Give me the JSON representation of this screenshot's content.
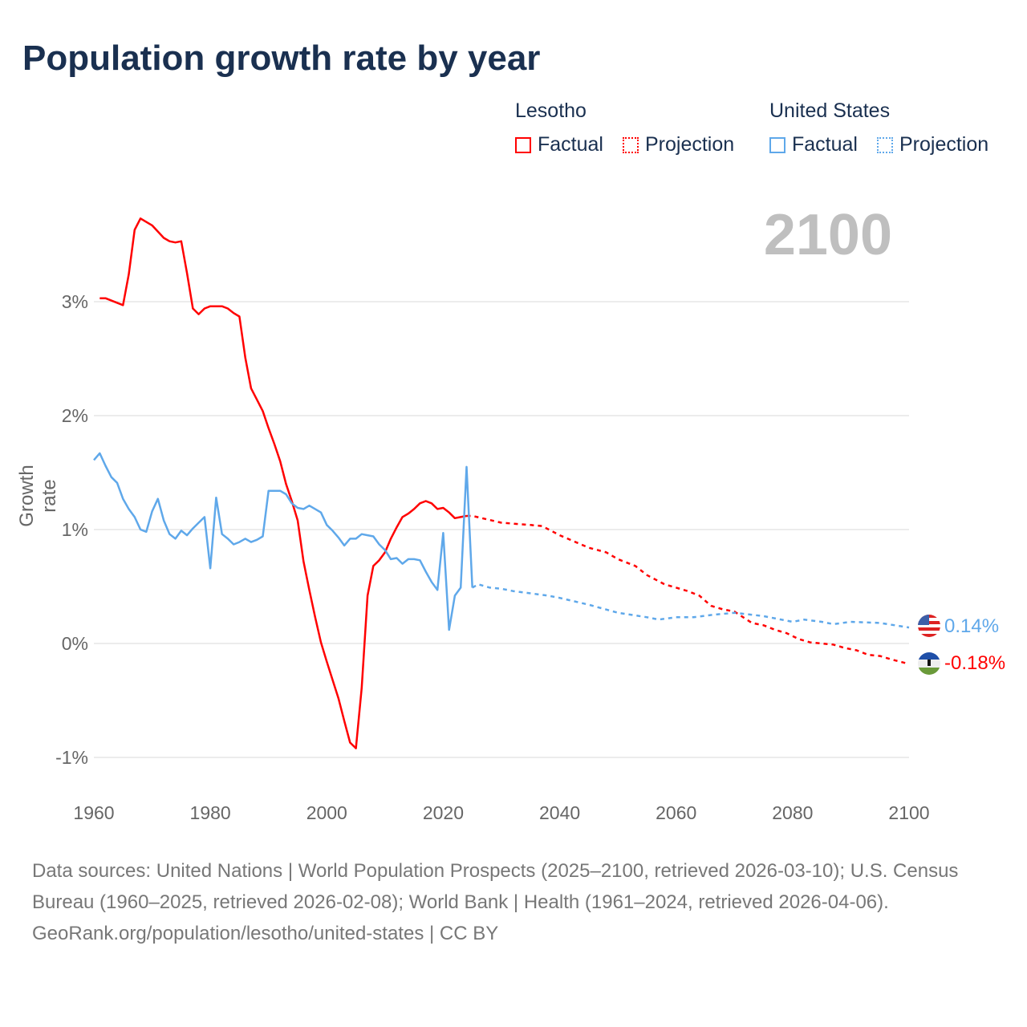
{
  "chart_data": {
    "type": "line",
    "title": "Population growth rate by year",
    "ylabel": "Growth rate",
    "xlabel": "",
    "xlim": [
      1960,
      2100
    ],
    "ylim": [
      -1.1,
      3.9
    ],
    "x_ticks": [
      "1960",
      "1980",
      "2000",
      "2020",
      "2040",
      "2060",
      "2080",
      "2100"
    ],
    "y_ticks": [
      {
        "value": 3,
        "label": "3%"
      },
      {
        "value": 2,
        "label": "2%"
      },
      {
        "value": 1,
        "label": "1%"
      },
      {
        "value": 0,
        "label": "0%"
      },
      {
        "value": -1,
        "label": "-1%"
      }
    ],
    "grid": true,
    "current_year": "2100",
    "legend": {
      "placement": "top-right",
      "groups": [
        {
          "name": "Lesotho",
          "factual": "Factual",
          "projection": "Projection"
        },
        {
          "name": "United States",
          "factual": "Factual",
          "projection": "Projection"
        }
      ]
    },
    "series": [
      {
        "name": "Lesotho",
        "kind": "factual",
        "color": "#ff0000",
        "x": [
          1961,
          1962,
          1965,
          1966,
          1967,
          1968,
          1970,
          1972,
          1973,
          1974,
          1975,
          1976,
          1977,
          1978,
          1979,
          1980,
          1981,
          1982,
          1983,
          1984,
          1985,
          1986,
          1987,
          1988,
          1989,
          1990,
          1991,
          1992,
          1993,
          1994,
          1995,
          1996,
          1997,
          1998,
          1999,
          2000,
          2001,
          2002,
          2003,
          2004,
          2005,
          2006,
          2007,
          2008,
          2009,
          2010,
          2011,
          2012,
          2013,
          2014,
          2015,
          2016,
          2017,
          2018,
          2019,
          2020,
          2021,
          2022,
          2023,
          2024
        ],
        "y": [
          3.03,
          3.03,
          2.97,
          3.24,
          3.63,
          3.73,
          3.67,
          3.56,
          3.53,
          3.52,
          3.53,
          3.25,
          2.94,
          2.89,
          2.94,
          2.96,
          2.96,
          2.96,
          2.94,
          2.9,
          2.87,
          2.51,
          2.24,
          2.14,
          2.04,
          1.89,
          1.75,
          1.6,
          1.4,
          1.25,
          1.08,
          0.72,
          0.47,
          0.23,
          0.01,
          -0.16,
          -0.32,
          -0.48,
          -0.68,
          -0.87,
          -0.92,
          -0.39,
          0.42,
          0.68,
          0.73,
          0.8,
          0.92,
          1.02,
          1.11,
          1.14,
          1.18,
          1.23,
          1.25,
          1.23,
          1.18,
          1.19,
          1.15,
          1.1,
          1.11,
          1.12
        ]
      },
      {
        "name": "Lesotho",
        "kind": "projection",
        "color": "#ff0000",
        "x": [
          2024,
          2025,
          2030,
          2035,
          2037,
          2040,
          2045,
          2048,
          2050,
          2053,
          2055,
          2058,
          2062,
          2064,
          2066,
          2068,
          2070,
          2073,
          2075,
          2077,
          2079,
          2081,
          2083,
          2085,
          2087,
          2089,
          2091,
          2093,
          2095,
          2097,
          2100
        ],
        "y": [
          1.12,
          1.12,
          1.06,
          1.04,
          1.03,
          0.95,
          0.84,
          0.8,
          0.74,
          0.68,
          0.6,
          0.52,
          0.46,
          0.42,
          0.33,
          0.3,
          0.28,
          0.18,
          0.16,
          0.12,
          0.09,
          0.04,
          0.01,
          0.0,
          -0.01,
          -0.04,
          -0.06,
          -0.1,
          -0.11,
          -0.14,
          -0.18
        ]
      },
      {
        "name": "United States",
        "kind": "factual",
        "color": "#5fa8ea",
        "x": [
          1960,
          1961,
          1962,
          1963,
          1964,
          1965,
          1966,
          1967,
          1968,
          1969,
          1970,
          1971,
          1972,
          1973,
          1974,
          1975,
          1976,
          1977,
          1978,
          1979,
          1980,
          1981,
          1982,
          1983,
          1984,
          1985,
          1986,
          1987,
          1988,
          1989,
          1990,
          1991,
          1992,
          1993,
          1994,
          1995,
          1996,
          1997,
          1998,
          1999,
          2000,
          2001,
          2002,
          2003,
          2004,
          2005,
          2006,
          2007,
          2008,
          2009,
          2010,
          2011,
          2012,
          2013,
          2014,
          2015,
          2016,
          2017,
          2018,
          2019,
          2020,
          2021,
          2022,
          2023,
          2024,
          2025
        ],
        "y": [
          1.61,
          1.67,
          1.56,
          1.46,
          1.41,
          1.27,
          1.18,
          1.11,
          1.0,
          0.98,
          1.16,
          1.27,
          1.08,
          0.96,
          0.92,
          0.99,
          0.95,
          1.01,
          1.06,
          1.11,
          0.66,
          1.28,
          0.96,
          0.92,
          0.87,
          0.89,
          0.92,
          0.89,
          0.91,
          0.94,
          1.34,
          1.34,
          1.34,
          1.31,
          1.23,
          1.19,
          1.18,
          1.21,
          1.18,
          1.15,
          1.04,
          0.99,
          0.93,
          0.86,
          0.92,
          0.92,
          0.96,
          0.95,
          0.94,
          0.87,
          0.82,
          0.74,
          0.75,
          0.7,
          0.74,
          0.74,
          0.73,
          0.63,
          0.54,
          0.47,
          0.97,
          0.12,
          0.42,
          0.49,
          1.55,
          0.49
        ]
      },
      {
        "name": "United States",
        "kind": "projection",
        "color": "#5fa8ea",
        "x": [
          2025,
          2026,
          2028,
          2030,
          2032,
          2035,
          2038,
          2040,
          2045,
          2050,
          2055,
          2057,
          2060,
          2063,
          2066,
          2070,
          2075,
          2080,
          2082,
          2085,
          2087,
          2090,
          2095,
          2100
        ],
        "y": [
          0.49,
          0.52,
          0.49,
          0.48,
          0.46,
          0.44,
          0.42,
          0.4,
          0.34,
          0.27,
          0.23,
          0.21,
          0.23,
          0.23,
          0.25,
          0.27,
          0.24,
          0.19,
          0.21,
          0.19,
          0.17,
          0.19,
          0.18,
          0.14
        ]
      }
    ],
    "end_labels": {
      "us": "0.14%",
      "lesotho": "-0.18%"
    }
  },
  "footer": {
    "sources": "Data sources: United Nations | World Population Prospects (2025–2100, retrieved 2026-03-10); U.S. Census Bureau (1960–2025, retrieved 2026-02-08); World Bank | Health (1961–2024, retrieved 2026-04-06).",
    "credit": "GeoRank.org/population/lesotho/united-states | CC BY"
  }
}
